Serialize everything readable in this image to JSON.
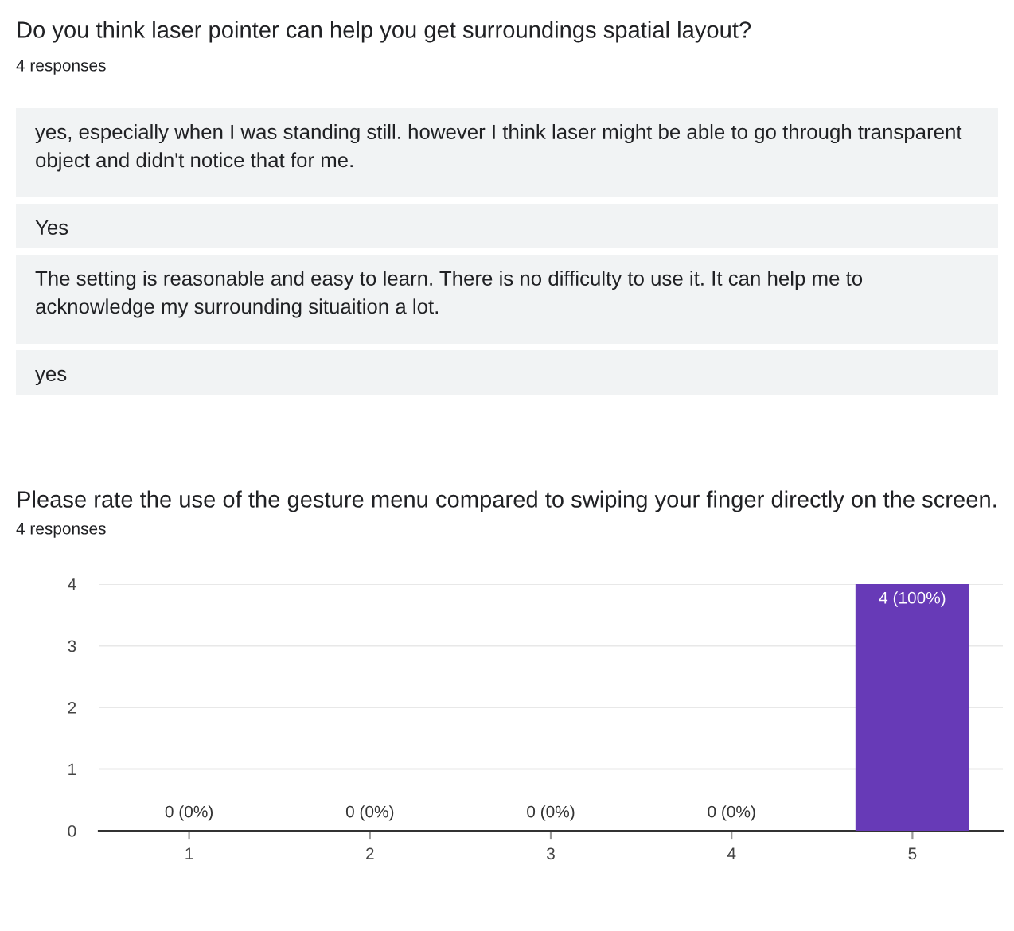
{
  "chart_data": [
    {
      "type": "other",
      "title": "Do you think laser pointer can help you get surroundings spatial layout?",
      "subtitle": "4 responses",
      "annotations": [
        "yes, especially when I was standing still. however I think laser might be able to go through transparent object and didn't notice that for me.",
        "Yes",
        "The setting is reasonable and easy to learn. There is no difficulty to use it. It can help me to acknowledge my surrounding situaition a lot.",
        "yes"
      ]
    },
    {
      "type": "bar",
      "title": "Please rate the use of the gesture menu compared to swiping your finger directly on the screen.",
      "subtitle": "4 responses",
      "categories": [
        "1",
        "2",
        "3",
        "4",
        "5"
      ],
      "values": [
        0,
        0,
        0,
        0,
        4
      ],
      "color": "#673ab7",
      "value_labels": [
        "0 (0%)",
        "0 (0%)",
        "0 (0%)",
        "0 (0%)",
        "4 (100%)"
      ],
      "ylim": [
        0,
        4
      ],
      "yticks": [
        0,
        1,
        2,
        3,
        4
      ],
      "grid": "y"
    }
  ]
}
